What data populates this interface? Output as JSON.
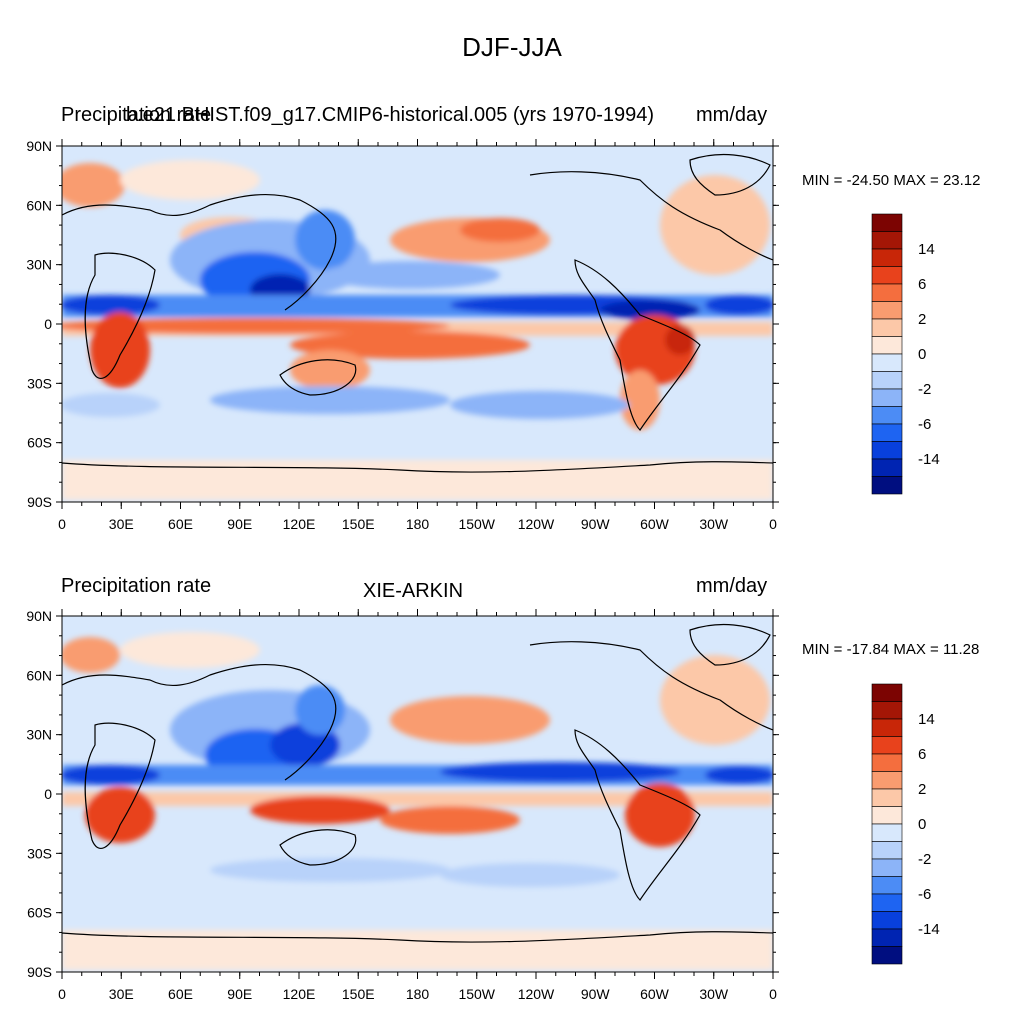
{
  "figure": {
    "title": "DJF-JJA",
    "units": "mm/day"
  },
  "colors": {
    "levels": [
      "#000e80",
      "#0024b2",
      "#0840dc",
      "#1e64f2",
      "#4c8cf5",
      "#8cb4f8",
      "#b8d2fa",
      "#d8e8fc",
      "#fde8da",
      "#fcc8a8",
      "#f99c70",
      "#f46e3e",
      "#e8421c",
      "#c82608",
      "#a41606",
      "#7c0402"
    ],
    "ocean_base": "#d8e8fc"
  },
  "panels": [
    {
      "id": "model",
      "left_title": "Precipitation rate",
      "center_title": "b.e21.BHIST.f09_g17.CMIP6-historical.005 (yrs 1970-1994)",
      "right_title": "mm/day",
      "min_label": "MIN =",
      "min_value": "-24.50",
      "max_label": "MAX =",
      "max_value": "23.12",
      "lat_labels": [
        "90N",
        "60N",
        "30N",
        "0",
        "30S",
        "60S",
        "90S"
      ],
      "lon_labels": [
        "0",
        "30E",
        "60E",
        "90E",
        "120E",
        "150E",
        "180",
        "150W",
        "120W",
        "90W",
        "60W",
        "30W",
        "0"
      ],
      "colorbar_labels": [
        "14",
        "6",
        "2",
        "0",
        "-2",
        "-6",
        "-14"
      ]
    },
    {
      "id": "obs",
      "left_title": "Precipitation rate",
      "center_title": "XIE-ARKIN",
      "right_title": "mm/day",
      "min_label": "MIN =",
      "min_value": "-17.84",
      "max_label": "MAX =",
      "max_value": "11.28",
      "lat_labels": [
        "90N",
        "60N",
        "30N",
        "0",
        "30S",
        "60S",
        "90S"
      ],
      "lon_labels": [
        "0",
        "30E",
        "60E",
        "90E",
        "120E",
        "150E",
        "180",
        "150W",
        "120W",
        "90W",
        "60W",
        "30W",
        "0"
      ],
      "colorbar_labels": [
        "14",
        "6",
        "2",
        "0",
        "-2",
        "-6",
        "-14"
      ]
    }
  ]
}
